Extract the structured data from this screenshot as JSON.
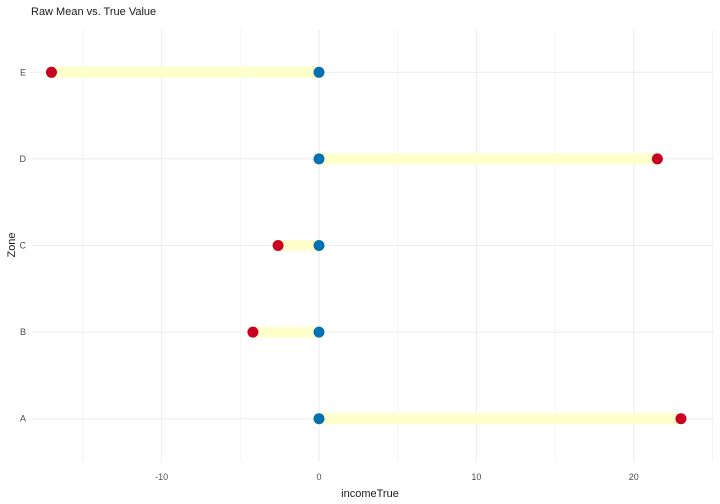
{
  "chart_data": {
    "type": "dumbbell",
    "title": "Raw Mean vs. True Value",
    "xlabel": "incomeTrue",
    "ylabel": "Zone",
    "categories": [
      "A",
      "B",
      "C",
      "D",
      "E"
    ],
    "series": [
      {
        "name": "",
        "role": "true-value",
        "color": "#0571b0",
        "values": [
          0,
          0,
          0,
          0,
          0
        ]
      },
      {
        "name": "",
        "role": "raw-mean",
        "color": "#ca0020",
        "values": [
          23.0,
          -4.2,
          -2.6,
          21.5,
          -17.0
        ]
      }
    ],
    "segment_color": "#ffffcc",
    "xlim": [
      -18.3,
      25.1
    ],
    "xticks": [
      -10,
      0,
      10,
      20
    ],
    "grid": true
  }
}
